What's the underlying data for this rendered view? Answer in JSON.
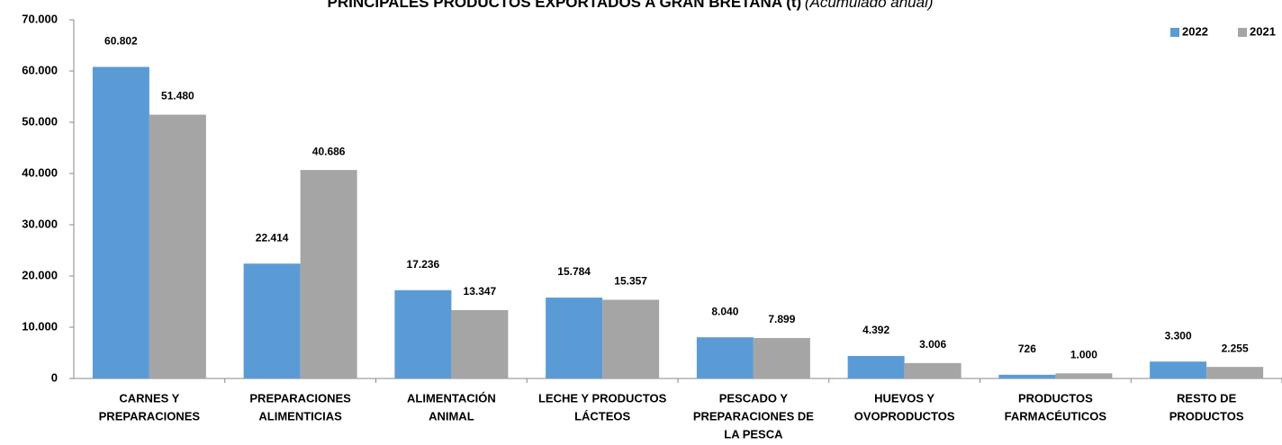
{
  "chart_data": {
    "type": "bar",
    "title": "PRINCIPALES PRODUCTOS EXPORTADOS A GRAN BRETAÑA (t)",
    "subtitle": "(Acumulado anual)",
    "categories": [
      [
        "CARNES Y",
        "PREPARACIONES"
      ],
      [
        "PREPARACIONES",
        "ALIMENTICIAS"
      ],
      [
        "ALIMENTACIÓN",
        "ANIMAL"
      ],
      [
        "LECHE Y PRODUCTOS",
        "LÁCTEOS"
      ],
      [
        "PESCADO Y",
        "PREPARACIONES DE",
        "LA PESCA"
      ],
      [
        "HUEVOS Y",
        "OVOPRODUCTOS"
      ],
      [
        "PRODUCTOS",
        "FARMACÉUTICOS"
      ],
      [
        "RESTO DE",
        "PRODUCTOS"
      ]
    ],
    "series": [
      {
        "name": "2022",
        "color": "#5b9bd5",
        "values": [
          60802,
          22414,
          17236,
          15784,
          8040,
          4392,
          726,
          3300
        ],
        "value_labels": [
          "60.802",
          "22.414",
          "17.236",
          "15.784",
          "8.040",
          "4.392",
          "726",
          "3.300"
        ]
      },
      {
        "name": "2021",
        "color": "#a5a5a5",
        "values": [
          51480,
          40686,
          13347,
          15357,
          7899,
          3006,
          1000,
          2255
        ],
        "value_labels": [
          "51.480",
          "40.686",
          "13.347",
          "15.357",
          "7.899",
          "3.006",
          "1.000",
          "2.255"
        ]
      }
    ],
    "ylim": [
      0,
      70000
    ],
    "yticks": [
      0,
      {
        "value": 10000,
        "label": "10.000"
      },
      {
        "value": 20000,
        "label": "20.000"
      },
      {
        "value": 30000,
        "label": "30.000"
      },
      {
        "value": 40000,
        "label": "40.000"
      },
      {
        "value": 50000,
        "label": "50.000"
      },
      {
        "value": 60000,
        "label": "60.000"
      },
      {
        "value": 70000,
        "label": "70.000"
      }
    ],
    "grid": false,
    "legend": "top-right"
  }
}
